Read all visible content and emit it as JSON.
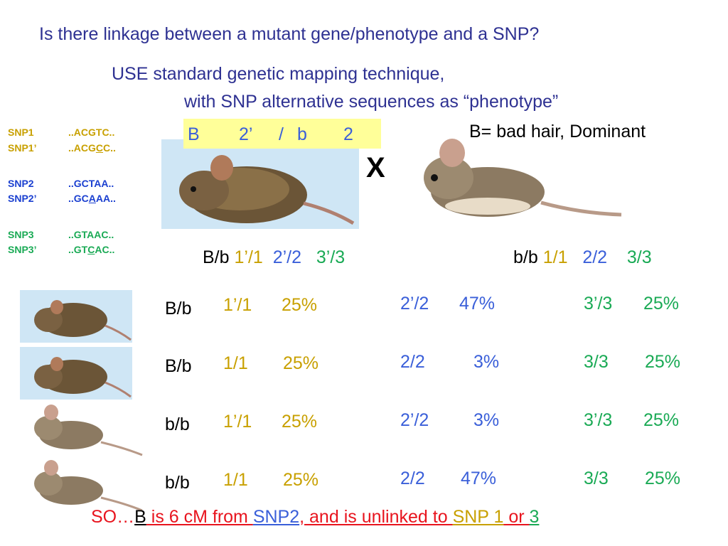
{
  "title": "Is there linkage between a mutant gene/phenotype and a SNP?",
  "subtitle_line1": "USE standard genetic mapping technique,",
  "subtitle_line2": "with SNP alternative sequences as “phenotype”",
  "snps": [
    {
      "name": "SNP1",
      "seq": "..ACGTC..",
      "color": "#c8a000"
    },
    {
      "name": "SNP1’",
      "seq_pre": "..ACG",
      "seq_mut": "C",
      "seq_post": "C..",
      "color": "#c8a000"
    },
    {
      "name": "SNP2",
      "seq": "..GCTAA..",
      "color": "#1a3fd0"
    },
    {
      "name": "SNP2’",
      "seq_pre": "..GC",
      "seq_mut": "A",
      "seq_post": "AA..",
      "color": "#1a3fd0"
    },
    {
      "name": "SNP3",
      "seq": "..GTAAC..",
      "color": "#1aaa55"
    },
    {
      "name": "SNP3’",
      "seq_pre": "..GT",
      "seq_mut": "C",
      "seq_post": "AC..",
      "color": "#1aaa55"
    }
  ],
  "parent_box": {
    "b_big": "B",
    "allele": "2’",
    "slash": "/",
    "b_small": "b",
    "num": "2"
  },
  "cross_symbol": "X",
  "b_def": "B= bad hair, Dominant",
  "parent1": {
    "genotype": "B/b",
    "s1": "1’/1",
    "s2": "2’/2",
    "s3": "3’/3"
  },
  "parent2": {
    "genotype": "b/b",
    "s1": "1/1",
    "s2": "2/2",
    "s3": "3/3"
  },
  "offspring": [
    {
      "genotype": "B/b",
      "s1": "1’/1",
      "p1": "25%",
      "s2": "2’/2",
      "p2": "47%",
      "s3": "3’/3",
      "p3": "25%"
    },
    {
      "genotype": "B/b",
      "s1": "1/1",
      "p1": "25%",
      "s2": "2/2",
      "p2": "3%",
      "s3": "3/3",
      "p3": "25%"
    },
    {
      "genotype": "b/b",
      "s1": "1’/1",
      "p1": "25%",
      "s2": "2’/2",
      "p2": "3%",
      "s3": "3’/3",
      "p3": "25%"
    },
    {
      "genotype": "b/b",
      "s1": "1/1",
      "p1": "25%",
      "s2": "2/2",
      "p2": "47%",
      "s3": "3/3",
      "p3": "25%"
    }
  ],
  "conclusion": {
    "so": "SO…",
    "b": "B",
    "mid1": " is 6 cM from ",
    "snp2": "SNP2",
    "mid2": ", and is unlinked to ",
    "snp1": "SNP 1",
    "or": " or ",
    "three": "3"
  },
  "colors": {
    "title": "#2e3192",
    "snp1": "#c8a000",
    "snp2": "#3a5fd9",
    "snp3": "#1aaa55",
    "conclusion": "#e8141e",
    "box": "#ffff99"
  }
}
